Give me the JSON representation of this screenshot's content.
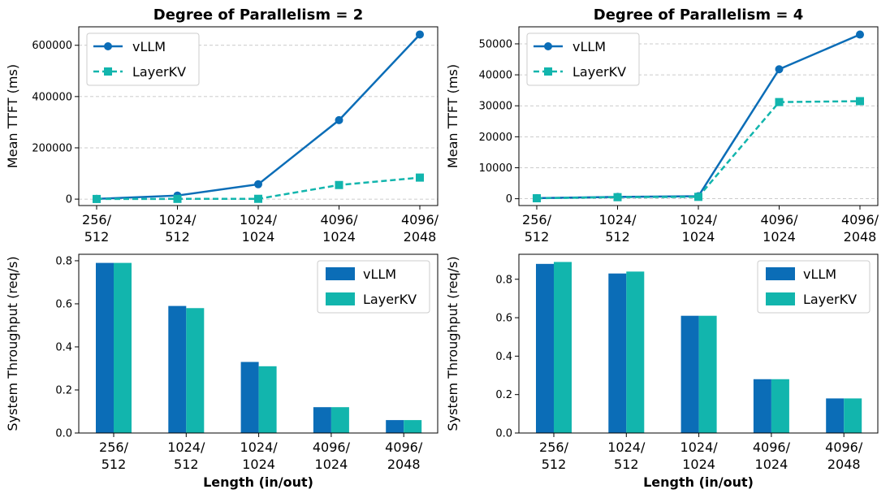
{
  "colors": {
    "vllm": "#0b6db7",
    "layerkv": "#12b5ad",
    "grid": "#bbbbbb"
  },
  "chart_data": [
    {
      "type": "line",
      "title": "Degree of Parallelism = 2",
      "xlabel": "",
      "ylabel": "Mean TTFT (ms)",
      "categories": [
        "256/\n512",
        "1024/\n512",
        "1024/\n1024",
        "4096/\n1024",
        "4096/\n2048"
      ],
      "ylim": [
        -25000,
        672000
      ],
      "yticks": [
        0,
        200000,
        400000,
        600000
      ],
      "ytick_labels": [
        "0",
        "200000",
        "400000",
        "600000"
      ],
      "grid": "y-dashed",
      "legend": "top-left",
      "series": [
        {
          "name": "vLLM",
          "values": [
            1000,
            14000,
            58000,
            308000,
            642000
          ]
        },
        {
          "name": "LayerKV",
          "values": [
            600,
            1000,
            1200,
            55000,
            84000
          ]
        }
      ]
    },
    {
      "type": "line",
      "title": "Degree of Parallelism = 4",
      "xlabel": "",
      "ylabel": "Mean TTFT (ms)",
      "categories": [
        "256/\n512",
        "1024/\n512",
        "1024/\n1024",
        "4096/\n1024",
        "4096/\n2048"
      ],
      "ylim": [
        -2200,
        55500
      ],
      "yticks": [
        0,
        10000,
        20000,
        30000,
        40000,
        50000
      ],
      "ytick_labels": [
        "0",
        "10000",
        "20000",
        "30000",
        "40000",
        "50000"
      ],
      "grid": "y-dashed",
      "legend": "top-left",
      "series": [
        {
          "name": "vLLM",
          "values": [
            200,
            600,
            800,
            41800,
            53000
          ]
        },
        {
          "name": "LayerKV",
          "values": [
            150,
            500,
            600,
            31200,
            31500
          ]
        }
      ]
    },
    {
      "type": "bar",
      "title": "",
      "xlabel": "Length (in/out)",
      "ylabel": "System Throughput (req/s)",
      "categories": [
        "256/\n512",
        "1024/\n512",
        "1024/\n1024",
        "4096/\n1024",
        "4096/\n2048"
      ],
      "ylim": [
        0,
        0.83
      ],
      "yticks": [
        0,
        0.2,
        0.4,
        0.6,
        0.8
      ],
      "ytick_labels": [
        "0.0",
        "0.2",
        "0.4",
        "0.6",
        "0.8"
      ],
      "grid": "none",
      "legend": "top-right",
      "series": [
        {
          "name": "vLLM",
          "values": [
            0.79,
            0.59,
            0.33,
            0.12,
            0.06
          ]
        },
        {
          "name": "LayerKV",
          "values": [
            0.79,
            0.58,
            0.31,
            0.12,
            0.06
          ]
        }
      ]
    },
    {
      "type": "bar",
      "title": "",
      "xlabel": "Length (in/out)",
      "ylabel": "System Throughput (req/s)",
      "categories": [
        "256/\n512",
        "1024/\n512",
        "1024/\n1024",
        "4096/\n1024",
        "4096/\n2048"
      ],
      "ylim": [
        0,
        0.93
      ],
      "yticks": [
        0,
        0.2,
        0.4,
        0.6,
        0.8
      ],
      "ytick_labels": [
        "0.0",
        "0.2",
        "0.4",
        "0.6",
        "0.8"
      ],
      "grid": "none",
      "legend": "top-right",
      "series": [
        {
          "name": "vLLM",
          "values": [
            0.88,
            0.83,
            0.61,
            0.28,
            0.18
          ]
        },
        {
          "name": "LayerKV",
          "values": [
            0.89,
            0.84,
            0.61,
            0.28,
            0.18
          ]
        }
      ]
    }
  ]
}
